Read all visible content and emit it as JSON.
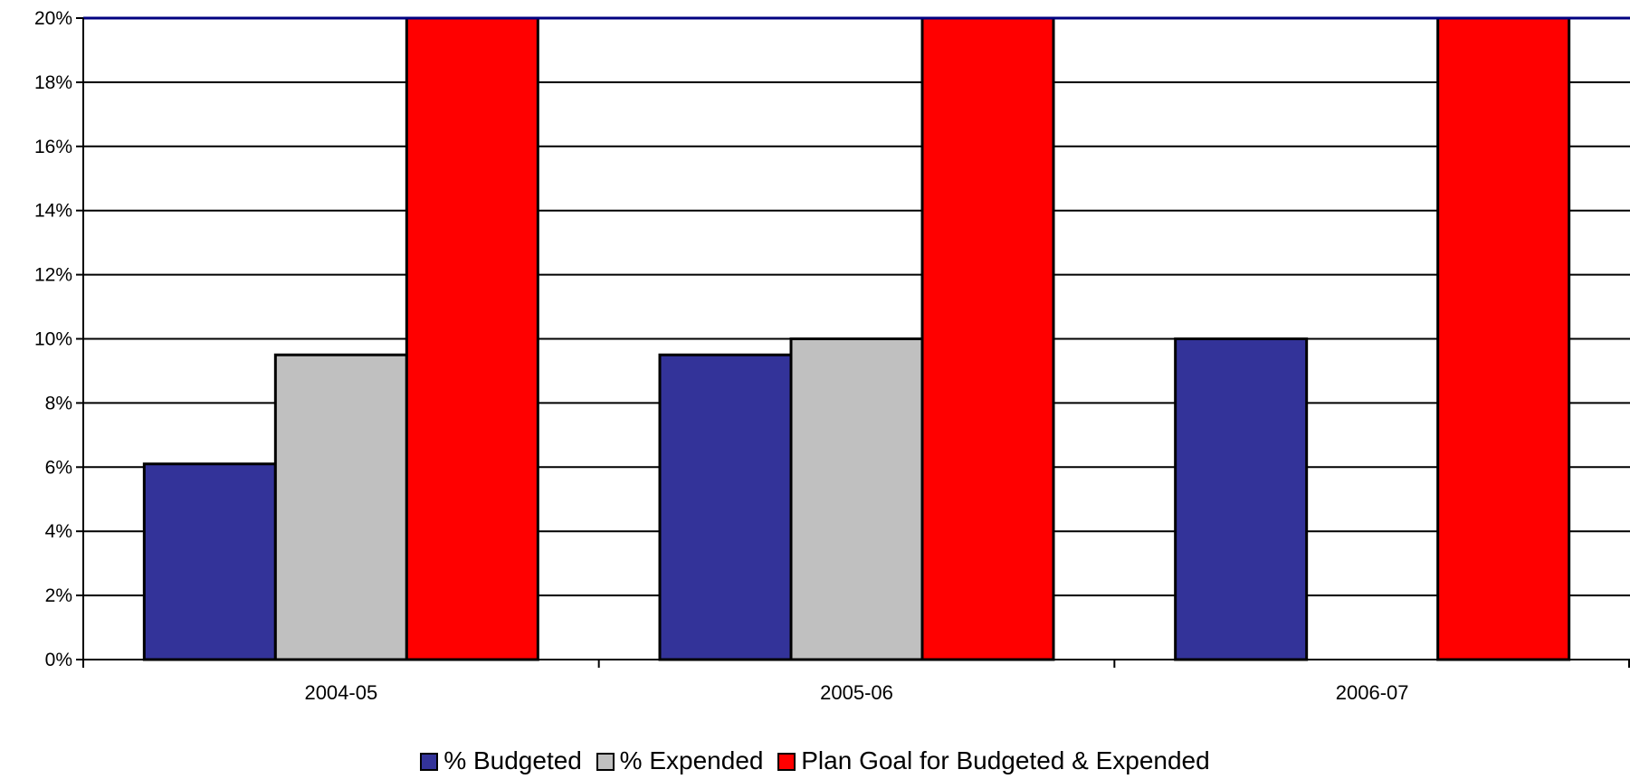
{
  "chart_data": {
    "type": "bar",
    "categories": [
      "2004-05",
      "2005-06",
      "2006-07"
    ],
    "series": [
      {
        "name": "% Budgeted",
        "values": [
          6.1,
          9.5,
          10.0
        ],
        "color": "#333399"
      },
      {
        "name": "% Expended",
        "values": [
          9.5,
          10.0,
          null
        ],
        "color": "#C0C0C0"
      },
      {
        "name": "Plan Goal for Budgeted & Expended",
        "values": [
          20,
          20,
          20
        ],
        "color": "#FF0000"
      }
    ],
    "yticks": [
      "0%",
      "2%",
      "4%",
      "6%",
      "8%",
      "10%",
      "12%",
      "14%",
      "16%",
      "18%",
      "20%"
    ],
    "ylim": [
      0,
      20
    ],
    "grid": true,
    "legend_position": "bottom"
  }
}
